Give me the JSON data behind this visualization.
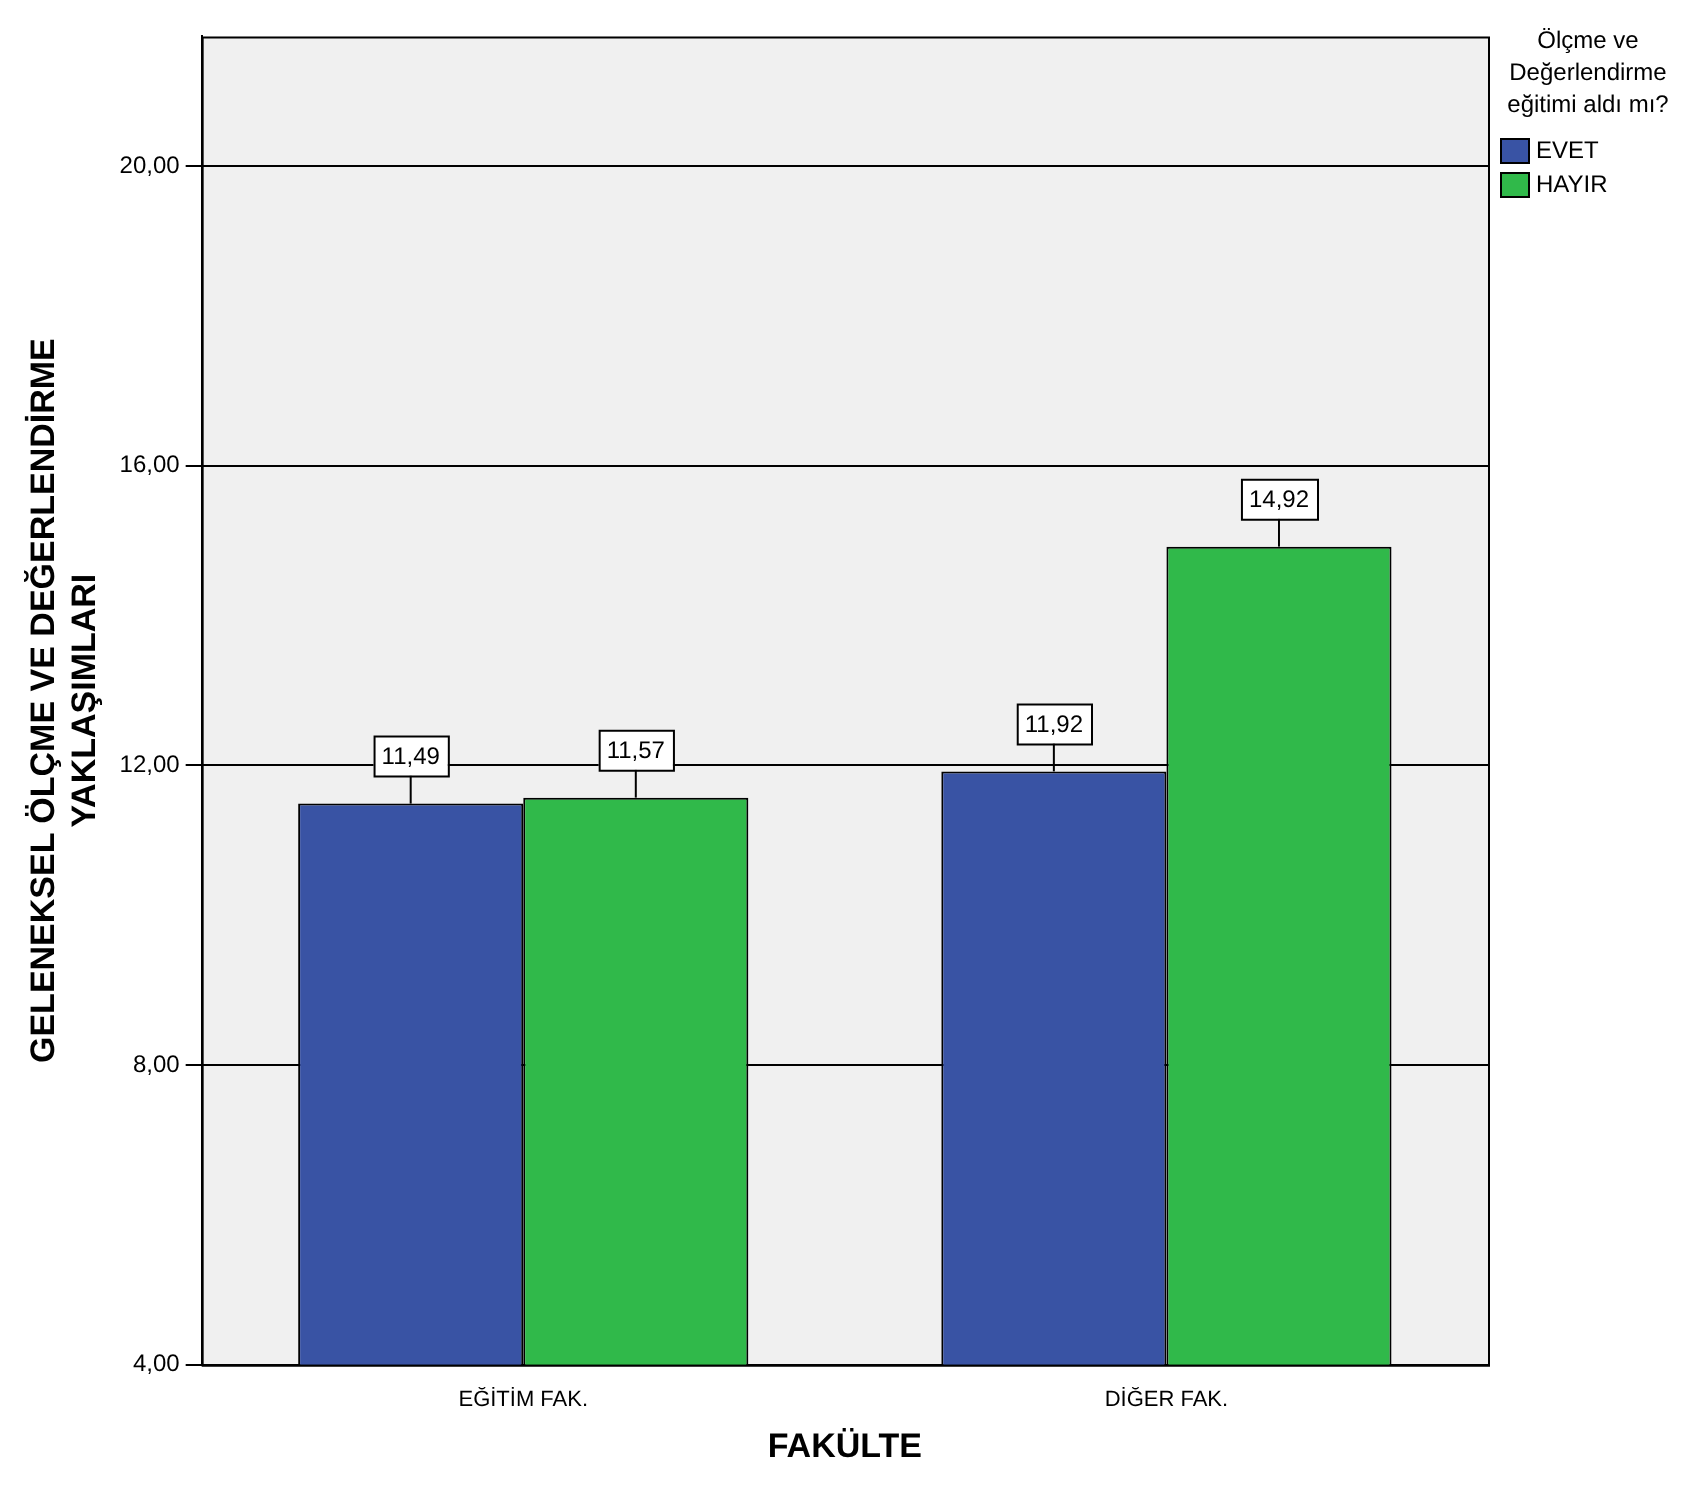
{
  "chart_data": {
    "type": "bar",
    "xlabel": "FAKÜLTE",
    "ylabel": "GELENEKSEL ÖLÇME VE DEĞERLENDİRME YAKLAŞIMLARI",
    "legend_title": "Ölçme ve Değerlendirme eğitimi aldı mı?",
    "categories": [
      "EĞİTİM FAK.",
      "DİĞER FAK."
    ],
    "series": [
      {
        "name": "EVET",
        "color": "#3953a4",
        "values": [
          11.49,
          11.92
        ],
        "value_labels": [
          "11,49",
          "11,92"
        ]
      },
      {
        "name": "HAYIR",
        "color": "#30b94a",
        "values": [
          11.57,
          14.92
        ],
        "value_labels": [
          "11,57",
          "14,92"
        ]
      }
    ],
    "ylim": [
      4,
      21.73
    ],
    "yticks": [
      {
        "value": 4,
        "label": "4,00"
      },
      {
        "value": 8,
        "label": "8,00"
      },
      {
        "value": 12,
        "label": "12,00"
      },
      {
        "value": 16,
        "label": "16,00"
      },
      {
        "value": 20,
        "label": "20,00"
      }
    ],
    "grid": "y",
    "legend": "top right"
  }
}
